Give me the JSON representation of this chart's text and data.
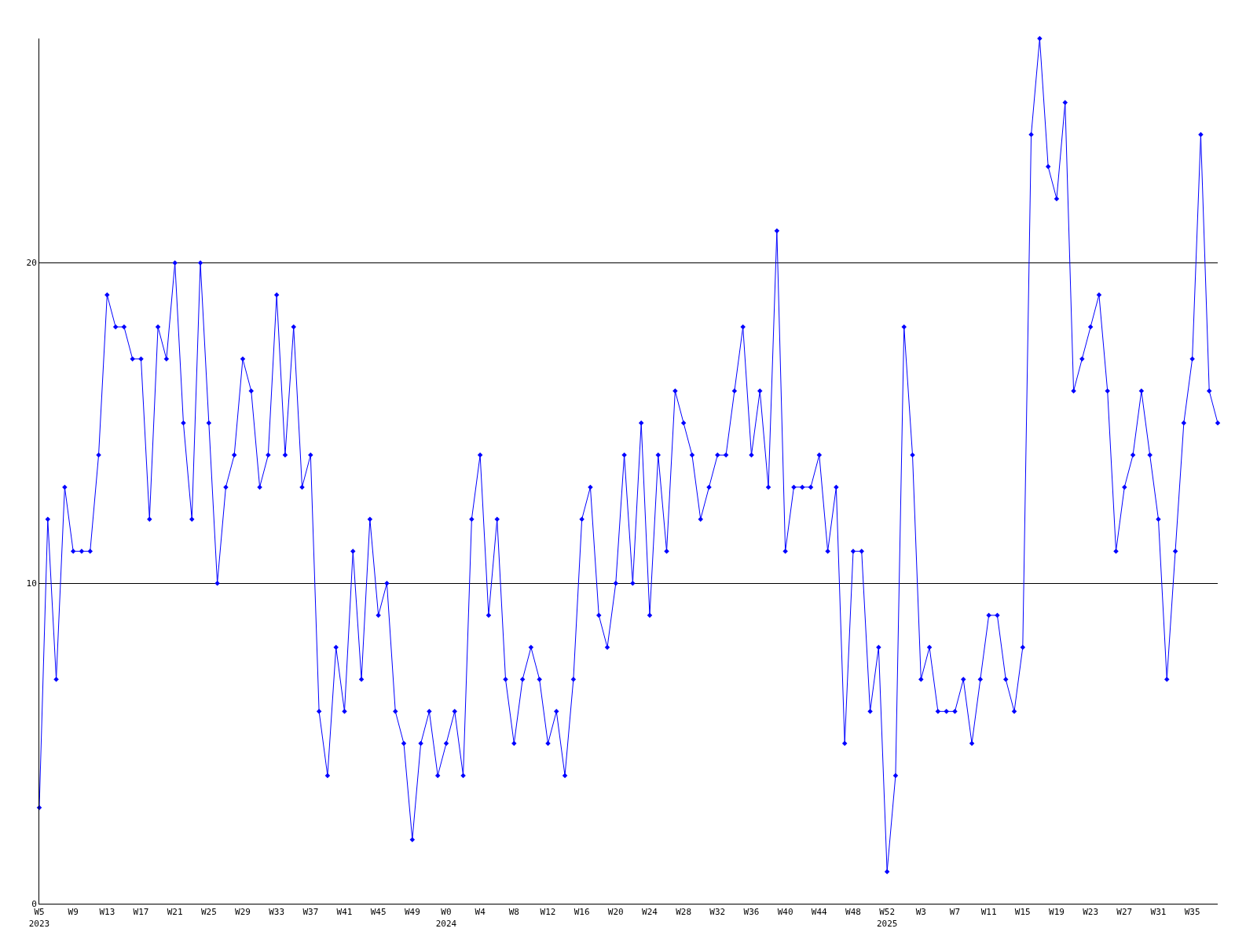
{
  "chart_data": {
    "type": "line",
    "categories": [
      "W5\n2023",
      null,
      null,
      null,
      "W9",
      null,
      null,
      null,
      "W13",
      null,
      null,
      null,
      "W17",
      null,
      null,
      null,
      "W21",
      null,
      null,
      null,
      "W25",
      null,
      null,
      null,
      "W29",
      null,
      null,
      null,
      "W33",
      null,
      null,
      null,
      "W37",
      null,
      null,
      null,
      "W41",
      null,
      null,
      null,
      "W45",
      null,
      null,
      null,
      "W49",
      null,
      null,
      null,
      "W0\n2024",
      null,
      null,
      null,
      "W4",
      null,
      null,
      null,
      "W8",
      null,
      null,
      null,
      "W12",
      null,
      null,
      null,
      "W16",
      null,
      null,
      null,
      "W20",
      null,
      null,
      null,
      "W24",
      null,
      null,
      null,
      "W28",
      null,
      null,
      null,
      "W32",
      null,
      null,
      null,
      "W36",
      null,
      null,
      null,
      "W40",
      null,
      null,
      null,
      "W44",
      null,
      null,
      null,
      "W48",
      null,
      null,
      null,
      "W52\n2025",
      null,
      null,
      null,
      "W3",
      null,
      null,
      null,
      "W7",
      null,
      null,
      null,
      "W11",
      null,
      null,
      null,
      "W15",
      null,
      null,
      null,
      "W19",
      null,
      null,
      null,
      "W23",
      null,
      null,
      null,
      "W27",
      null,
      null,
      null,
      "W31",
      null,
      null,
      null,
      "W35",
      null,
      null,
      null
    ],
    "series": [
      {
        "color": "#0000ff",
        "values": [
          3,
          12,
          7,
          13,
          11,
          11,
          11,
          14,
          19,
          18,
          18,
          17,
          17,
          12,
          18,
          17,
          20,
          15,
          12,
          20,
          15,
          10,
          13,
          14,
          17,
          16,
          13,
          14,
          19,
          14,
          18,
          13,
          14,
          6,
          4,
          8,
          6,
          11,
          7,
          12,
          9,
          10,
          6,
          5,
          2,
          5,
          6,
          4,
          5,
          6,
          4,
          12,
          14,
          9,
          12,
          7,
          5,
          7,
          8,
          7,
          5,
          6,
          4,
          7,
          12,
          13,
          9,
          8,
          10,
          14,
          10,
          15,
          9,
          14,
          11,
          16,
          15,
          14,
          12,
          13,
          14,
          14,
          16,
          18,
          14,
          16,
          13,
          21,
          11,
          13,
          13,
          13,
          14,
          11,
          13,
          5,
          11,
          11,
          6,
          8,
          1,
          4,
          18,
          14,
          7,
          8,
          6,
          6,
          6,
          7,
          5,
          7,
          9,
          9,
          7,
          6,
          8,
          24,
          27,
          23,
          22,
          25,
          16,
          17,
          18,
          19,
          16,
          11,
          13,
          14,
          16,
          14,
          12,
          7,
          11,
          15,
          17,
          24,
          16,
          15
        ]
      }
    ],
    "ylim": [
      0,
      27
    ],
    "yticks": [
      0,
      10,
      20
    ],
    "grid": "y",
    "marker": "diamond",
    "line_style": "solid",
    "legend": false
  }
}
